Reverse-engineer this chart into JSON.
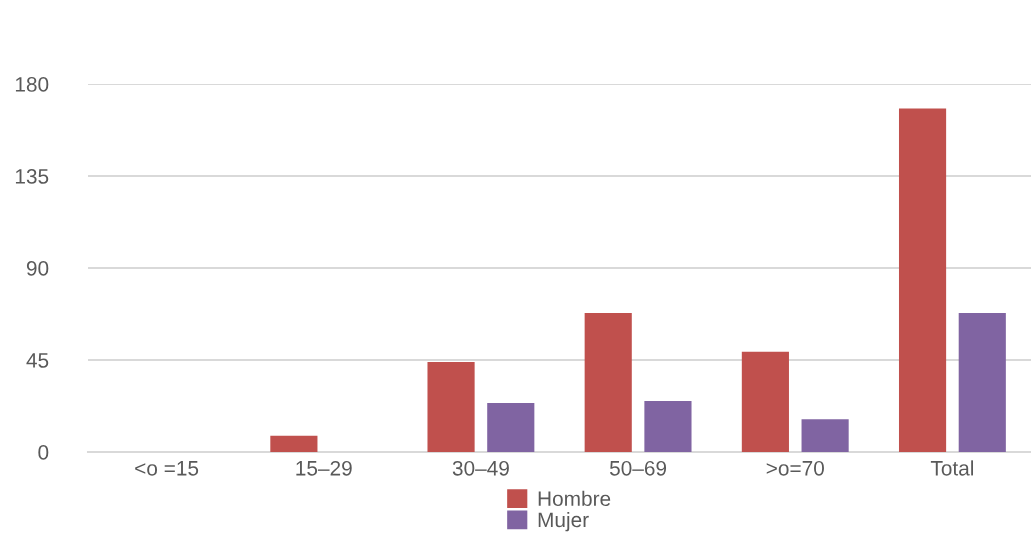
{
  "chart_data": {
    "type": "bar",
    "categories": [
      "<o =15",
      "15–29",
      "30–49",
      "50–69",
      ">o=70",
      "Total"
    ],
    "series": [
      {
        "name": "Hombre",
        "color": "#c0504d",
        "values": [
          0,
          8,
          44,
          68,
          49,
          168
        ]
      },
      {
        "name": "Mujer",
        "color": "#8064a2",
        "values": [
          0,
          0,
          24,
          25,
          16,
          68
        ]
      }
    ],
    "ylim": [
      0,
      180
    ],
    "yticks": [
      0,
      45,
      90,
      135,
      180
    ],
    "grid": "y",
    "legend": "bottom"
  }
}
